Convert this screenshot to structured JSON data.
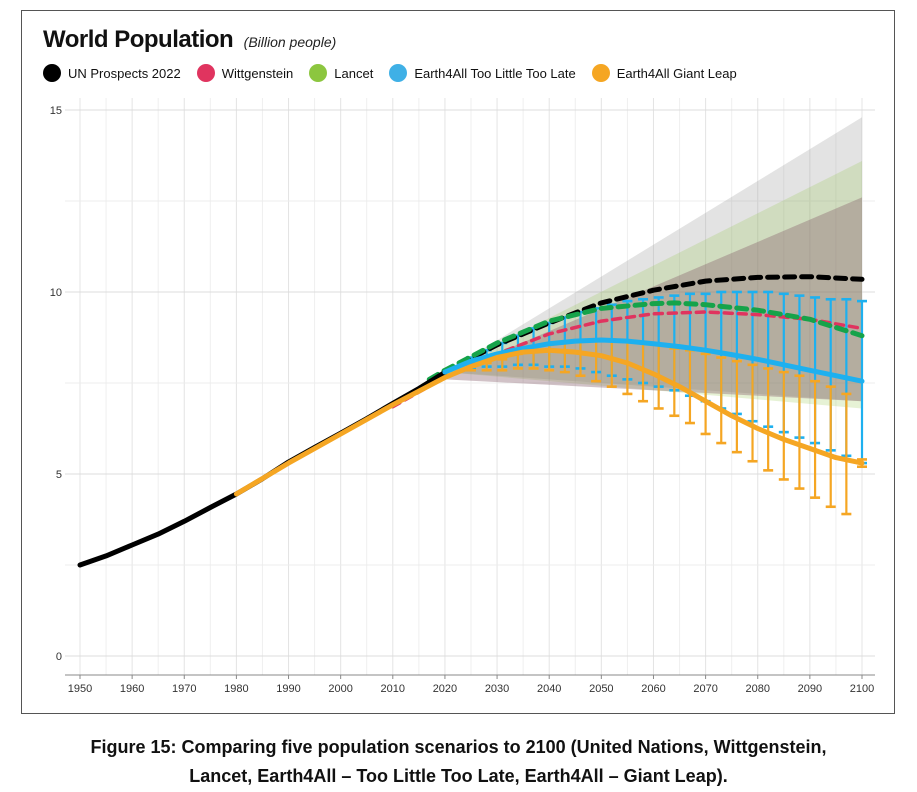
{
  "figure": {
    "caption_line1": "Figure 15: Comparing five population scenarios to 2100 (United Nations, Wittgenstein,",
    "caption_line2": "Lancet, Earth4All – Too Little Too Late, Earth4All – Giant Leap)."
  },
  "chart_data": {
    "type": "line",
    "title": "World Population",
    "subtitle": "(Billion people)",
    "xlabel": "",
    "ylabel": "",
    "xlim": [
      1948,
      2102
    ],
    "ylim": [
      0,
      15
    ],
    "grid": true,
    "legend_position": "top-left",
    "x_ticks": [
      1950,
      1960,
      1970,
      1980,
      1990,
      2000,
      2010,
      2020,
      2030,
      2040,
      2050,
      2060,
      2070,
      2080,
      2090,
      2100
    ],
    "y_ticks": [
      0,
      5,
      10,
      15
    ],
    "legend": [
      {
        "name": "UN Prospects 2022",
        "color": "#000000"
      },
      {
        "name": "Wittgenstein",
        "color": "#e0345f"
      },
      {
        "name": "Lancet",
        "color": "#8cc63f"
      },
      {
        "name": "Earth4All Too Little Too Late",
        "color": "#3fb0e6"
      },
      {
        "name": "Earth4All Giant Leap",
        "color": "#f5a623"
      }
    ],
    "series": [
      {
        "name": "UN Prospects 2022",
        "color": "#000000",
        "historical": {
          "x": [
            1950,
            1955,
            1960,
            1965,
            1970,
            1975,
            1980,
            1985,
            1990,
            1995,
            2000,
            2005,
            2010,
            2015,
            2020
          ],
          "y": [
            2.5,
            2.75,
            3.05,
            3.35,
            3.7,
            4.08,
            4.45,
            4.87,
            5.33,
            5.73,
            6.12,
            6.52,
            6.94,
            7.35,
            7.79
          ]
        },
        "projection": {
          "x": [
            2020,
            2030,
            2040,
            2050,
            2060,
            2070,
            2080,
            2090,
            2100
          ],
          "y": [
            7.8,
            8.55,
            9.15,
            9.7,
            10.05,
            10.3,
            10.4,
            10.42,
            10.35
          ]
        },
        "band_95": {
          "x": [
            2020,
            2100
          ],
          "lower": [
            7.8,
            7.0
          ],
          "upper": [
            7.8,
            14.8
          ]
        }
      },
      {
        "name": "Wittgenstein",
        "color": "#e0345f",
        "x": [
          2010,
          2020,
          2030,
          2040,
          2050,
          2060,
          2070,
          2080,
          2090,
          2100
        ],
        "y": [
          6.85,
          7.65,
          8.3,
          8.85,
          9.2,
          9.4,
          9.45,
          9.38,
          9.25,
          9.0
        ],
        "band": {
          "x": [
            2020,
            2100
          ],
          "lower": [
            7.6,
            7.0
          ],
          "upper": [
            7.7,
            12.6
          ]
        }
      },
      {
        "name": "Lancet",
        "color": "#8cc63f",
        "x": [
          2017,
          2020,
          2030,
          2040,
          2050,
          2060,
          2064,
          2070,
          2080,
          2090,
          2100
        ],
        "y": [
          7.6,
          7.85,
          8.6,
          9.2,
          9.55,
          9.68,
          9.7,
          9.65,
          9.5,
          9.25,
          8.8
        ],
        "band": {
          "x": [
            2020,
            2100
          ],
          "lower": [
            7.8,
            6.8
          ],
          "upper": [
            7.85,
            13.6
          ]
        }
      },
      {
        "name": "Earth4All Too Little Too Late",
        "color": "#3fb0e6",
        "x": [
          2020,
          2025,
          2030,
          2035,
          2040,
          2045,
          2050,
          2055,
          2060,
          2065,
          2070,
          2075,
          2080,
          2085,
          2090,
          2095,
          2100
        ],
        "y": [
          7.8,
          8.1,
          8.3,
          8.45,
          8.58,
          8.65,
          8.68,
          8.65,
          8.58,
          8.5,
          8.4,
          8.28,
          8.15,
          8.0,
          7.85,
          7.7,
          7.55
        ],
        "error_bars": {
          "x": [
            2025,
            2028,
            2031,
            2034,
            2037,
            2040,
            2043,
            2046,
            2049,
            2052,
            2055,
            2058,
            2061,
            2064,
            2067,
            2070,
            2073,
            2076,
            2079,
            2082,
            2085,
            2088,
            2091,
            2094,
            2097,
            2100
          ],
          "lower": [
            7.9,
            7.95,
            7.95,
            8.0,
            8.0,
            7.95,
            7.95,
            7.9,
            7.8,
            7.7,
            7.6,
            7.5,
            7.4,
            7.3,
            7.15,
            7.0,
            6.8,
            6.65,
            6.45,
            6.3,
            6.15,
            6.0,
            5.85,
            5.65,
            5.5,
            5.3
          ],
          "upper": [
            8.2,
            8.4,
            8.6,
            8.8,
            9.0,
            9.15,
            9.3,
            9.45,
            9.55,
            9.65,
            9.75,
            9.8,
            9.85,
            9.9,
            9.95,
            9.95,
            10.0,
            10.0,
            10.0,
            10.0,
            9.95,
            9.9,
            9.85,
            9.8,
            9.8,
            9.75
          ]
        }
      },
      {
        "name": "Earth4All Giant Leap",
        "color": "#f5a623",
        "x": [
          1980,
          1990,
          2000,
          2010,
          2020,
          2025,
          2030,
          2035,
          2040,
          2045,
          2050,
          2055,
          2060,
          2065,
          2070,
          2075,
          2080,
          2085,
          2090,
          2095,
          2100
        ],
        "y": [
          4.45,
          5.3,
          6.1,
          6.9,
          7.65,
          7.95,
          8.2,
          8.35,
          8.4,
          8.35,
          8.25,
          8.05,
          7.75,
          7.4,
          7.0,
          6.6,
          6.25,
          5.95,
          5.7,
          5.45,
          5.3
        ],
        "error_bars": {
          "x": [
            2025,
            2028,
            2031,
            2034,
            2037,
            2040,
            2043,
            2046,
            2049,
            2052,
            2055,
            2058,
            2061,
            2064,
            2067,
            2070,
            2073,
            2076,
            2079,
            2082,
            2085,
            2088,
            2091,
            2094,
            2097,
            2100
          ],
          "lower": [
            7.85,
            7.85,
            7.85,
            7.9,
            7.9,
            7.85,
            7.8,
            7.7,
            7.55,
            7.4,
            7.2,
            7.0,
            6.8,
            6.6,
            6.4,
            6.1,
            5.85,
            5.6,
            5.35,
            5.1,
            4.85,
            4.6,
            4.35,
            4.1,
            3.9,
            5.2
          ],
          "upper": [
            7.95,
            8.05,
            8.15,
            8.3,
            8.45,
            8.55,
            8.6,
            8.65,
            8.7,
            8.7,
            8.65,
            8.6,
            8.55,
            8.45,
            8.4,
            8.3,
            8.2,
            8.1,
            8.0,
            7.9,
            7.8,
            7.7,
            7.55,
            7.4,
            7.2,
            5.4
          ]
        }
      }
    ]
  }
}
